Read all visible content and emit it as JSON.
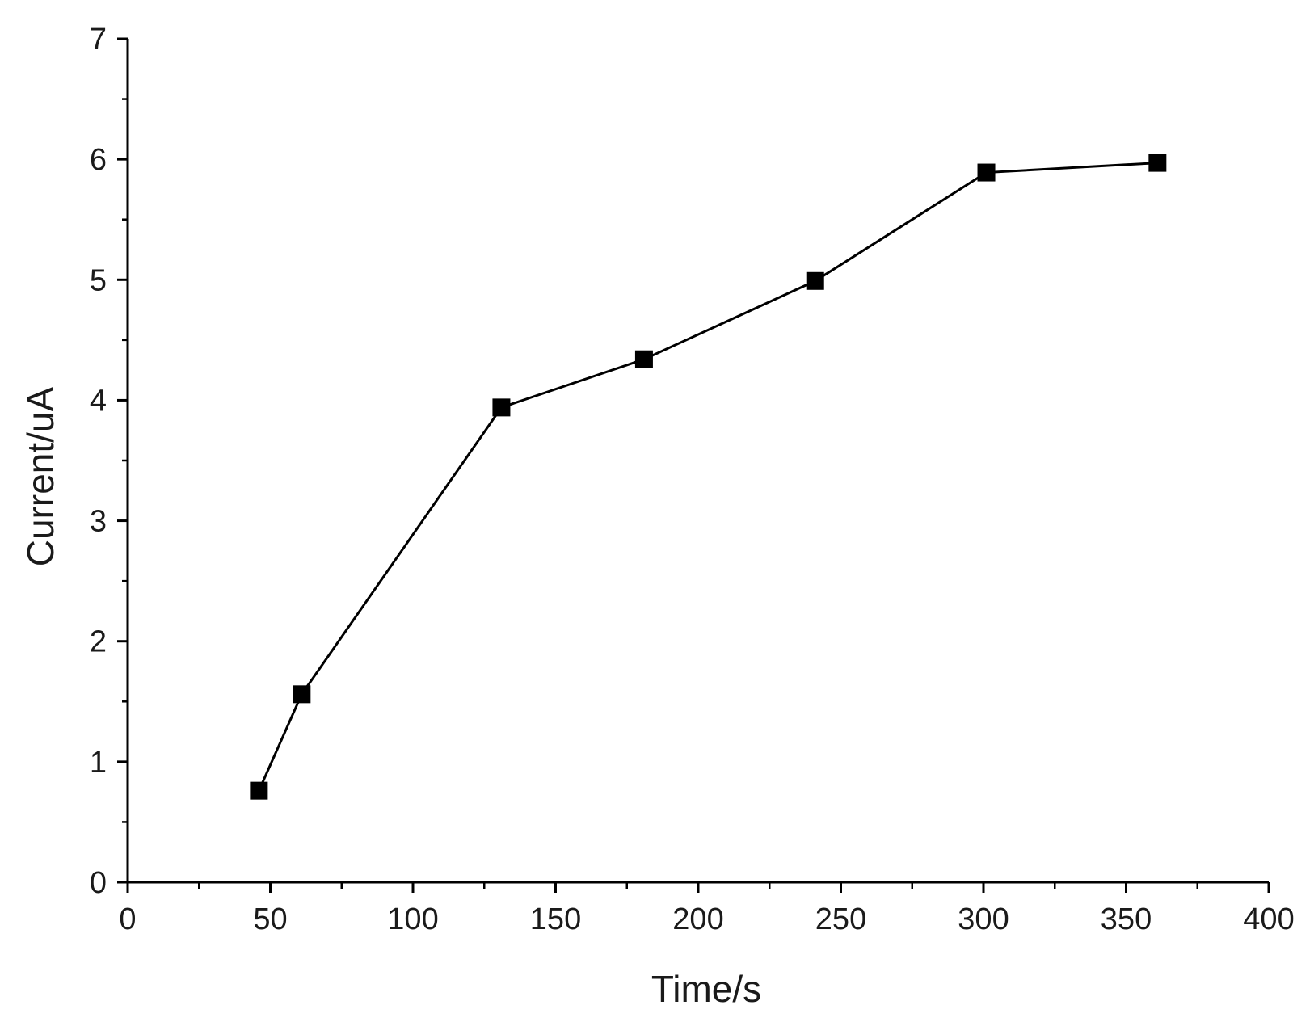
{
  "chart_data": {
    "type": "line",
    "title": "",
    "xlabel": "Time/s",
    "ylabel": "Current/uA",
    "xlim": [
      0,
      400
    ],
    "ylim": [
      0,
      7
    ],
    "x_ticks": [
      "0",
      "50",
      "100",
      "150",
      "200",
      "250",
      "300",
      "350",
      "400"
    ],
    "y_ticks": [
      "0",
      "1",
      "2",
      "3",
      "4",
      "5",
      "6",
      "7"
    ],
    "grid": false,
    "marker": "square",
    "line_color": "#000000",
    "series": [
      {
        "x": [
          46,
          61,
          131,
          181,
          241,
          301,
          361
        ],
        "y": [
          0.76,
          1.56,
          3.94,
          4.34,
          4.99,
          5.89,
          5.97
        ]
      }
    ]
  }
}
